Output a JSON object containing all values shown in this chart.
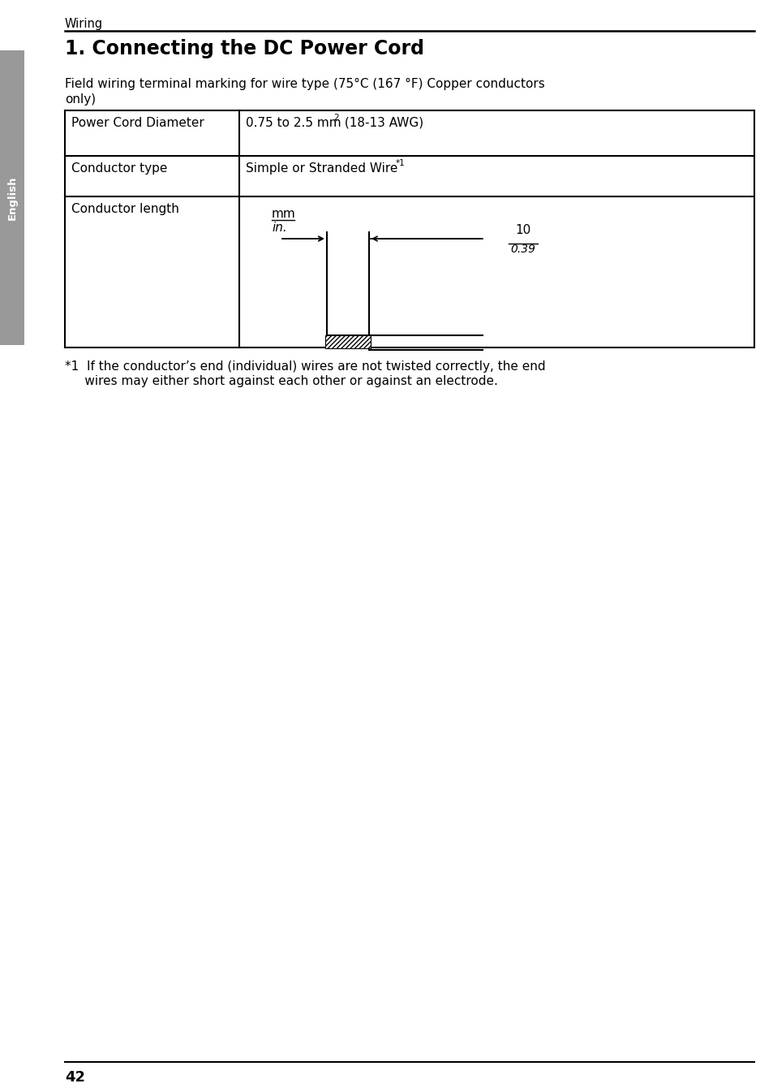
{
  "page_num": "42",
  "section_label": "Wiring",
  "title": "1. Connecting the DC Power Cord",
  "subtitle_line1": "Field wiring terminal marking for wire type (75°C (167 °F) Copper conductors",
  "subtitle_line2": "only)",
  "sidebar_text": "English",
  "row1_label": "Power Cord Diameter",
  "row1_val": "0.75 to 2.5 mm",
  "row1_sup": "2",
  "row1_suffix": " (18-13 AWG)",
  "row2_label": "Conductor type",
  "row2_val": "Simple or Stranded Wire",
  "row2_sup": "*1",
  "row3_label": "Conductor length",
  "diagram_label_mm": "mm",
  "diagram_label_in": "in.",
  "diagram_dim_top": "10",
  "diagram_dim_bottom": "0.39",
  "footnote_line1": "*1  If the conductor’s end (individual) wires are not twisted correctly, the end",
  "footnote_line2": "     wires may either short against each other or against an electrode.",
  "bg_color": "#ffffff",
  "text_color": "#000000",
  "sidebar_bg": "#999999",
  "title_fontsize": 17,
  "body_fontsize": 11,
  "footnote_fontsize": 11
}
